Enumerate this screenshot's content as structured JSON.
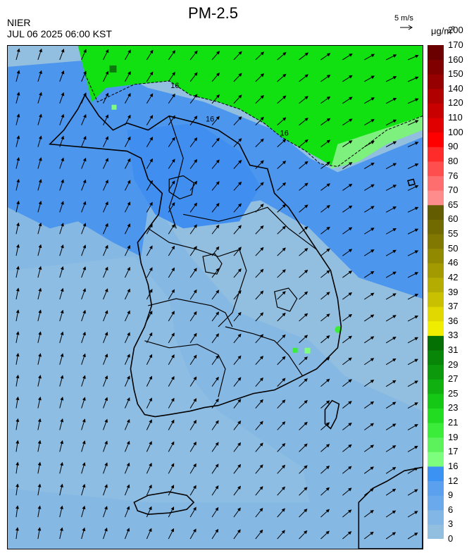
{
  "header": {
    "title": "PM-2.5",
    "org": "NIER",
    "timestamp": "JUL 06 2025 06:00 KST",
    "scale_label": "5 m/s",
    "unit_main": "μg/m",
    "unit_sup": "3"
  },
  "map": {
    "region": "South Korea",
    "contour_labels": [
      "16",
      "16",
      "16"
    ],
    "wind_field": {
      "general_direction": "toward northeast",
      "representative_speed_ms": 5
    }
  },
  "legend": {
    "tick_labels": [
      "0",
      "3",
      "6",
      "9",
      "12",
      "16",
      "17",
      "19",
      "21",
      "23",
      "25",
      "27",
      "29",
      "31",
      "33",
      "36",
      "37",
      "39",
      "42",
      "46",
      "50",
      "55",
      "60",
      "65",
      "70",
      "76",
      "80",
      "90",
      "100",
      "110",
      "120",
      "140",
      "150",
      "160",
      "170",
      "200"
    ],
    "colors": [
      "#92bfe0",
      "#81b6e6",
      "#6aa9ec",
      "#5aa0ee",
      "#3c92f2",
      "#7dff7d",
      "#5bf25b",
      "#3bec3b",
      "#22dc22",
      "#16c816",
      "#11b011",
      "#0c9a0c",
      "#088608",
      "#047004",
      "#f0ed00",
      "#e0d800",
      "#c8c000",
      "#b4ac00",
      "#a29a00",
      "#918900",
      "#807800",
      "#716a00",
      "#635c00",
      "#ff8c8c",
      "#ff6e6e",
      "#ff4e4e",
      "#ff2a2a",
      "#ff0000",
      "#e00000",
      "#c80000",
      "#b00000",
      "#960000",
      "#800000",
      "#6a0000"
    ]
  }
}
